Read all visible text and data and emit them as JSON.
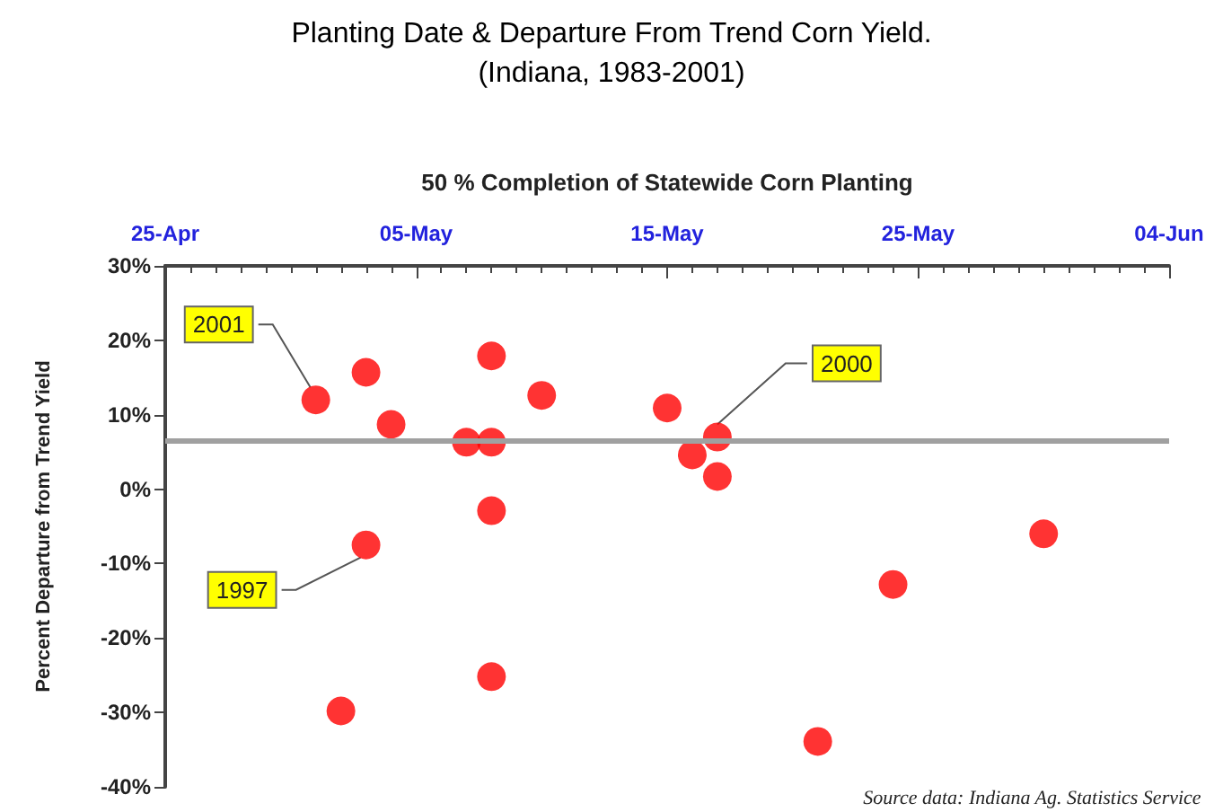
{
  "chart_data": {
    "type": "scatter",
    "title": "Planting Date & Departure From Trend Corn Yield.",
    "subtitle": "(Indiana, 1983-2001)",
    "xlabel": "50 % Completion of Statewide Corn Planting",
    "ylabel": "Percent Departure from Trend Yield",
    "x": [
      "--05-01",
      "--05-03",
      "--05-04",
      "--05-03",
      "--05-02",
      "--05-07",
      "--05-08",
      "--05-08",
      "--05-08",
      "--05-08",
      "--05-10",
      "--05-15",
      "--05-16",
      "--05-17",
      "--05-17",
      "--05-21",
      "--05-24",
      "--05-30"
    ],
    "series": [
      {
        "color": "#ff0000",
        "values": [
          12,
          15.7,
          8.7,
          -7.5,
          -29.8,
          6.3,
          6.3,
          17.9,
          -2.9,
          -25.2,
          12.6,
          10.9,
          4.6,
          7,
          1.7,
          -33.9,
          -12.8,
          -6
        ]
      }
    ],
    "xlim": [
      "--04-25",
      "--06-04"
    ],
    "xticks": [
      {
        "value": "--04-25",
        "label": "25-Apr"
      },
      {
        "value": "--05-05",
        "label": "05-May"
      },
      {
        "value": "--05-15",
        "label": "15-May"
      },
      {
        "value": "--05-25",
        "label": "25-May"
      },
      {
        "value": "--06-04",
        "label": "04-Jun"
      }
    ],
    "ylim": [
      -40,
      30
    ],
    "yticks": [
      {
        "value": -40,
        "label": "-40%"
      },
      {
        "value": -30,
        "label": "-30%"
      },
      {
        "value": -20,
        "label": "-20%"
      },
      {
        "value": -10,
        "label": "-10%"
      },
      {
        "value": 0,
        "label": "0%"
      },
      {
        "value": 10,
        "label": "10%"
      },
      {
        "value": 20,
        "label": "20%"
      },
      {
        "value": 30,
        "label": "30%"
      }
    ],
    "ref_lines": [
      {
        "axis": "y",
        "value": 6.5,
        "color": "#a0a0a0"
      }
    ],
    "annotations": [
      {
        "text": "2001",
        "x": "--05-01",
        "y": 12
      },
      {
        "text": "1997",
        "x": "--05-03",
        "y": -7.5
      },
      {
        "text": "2000",
        "x": "--05-17",
        "y": 7
      },
      "Source data: Indiana Ag. Statistics Service"
    ],
    "marker": "circle",
    "grid": false
  }
}
